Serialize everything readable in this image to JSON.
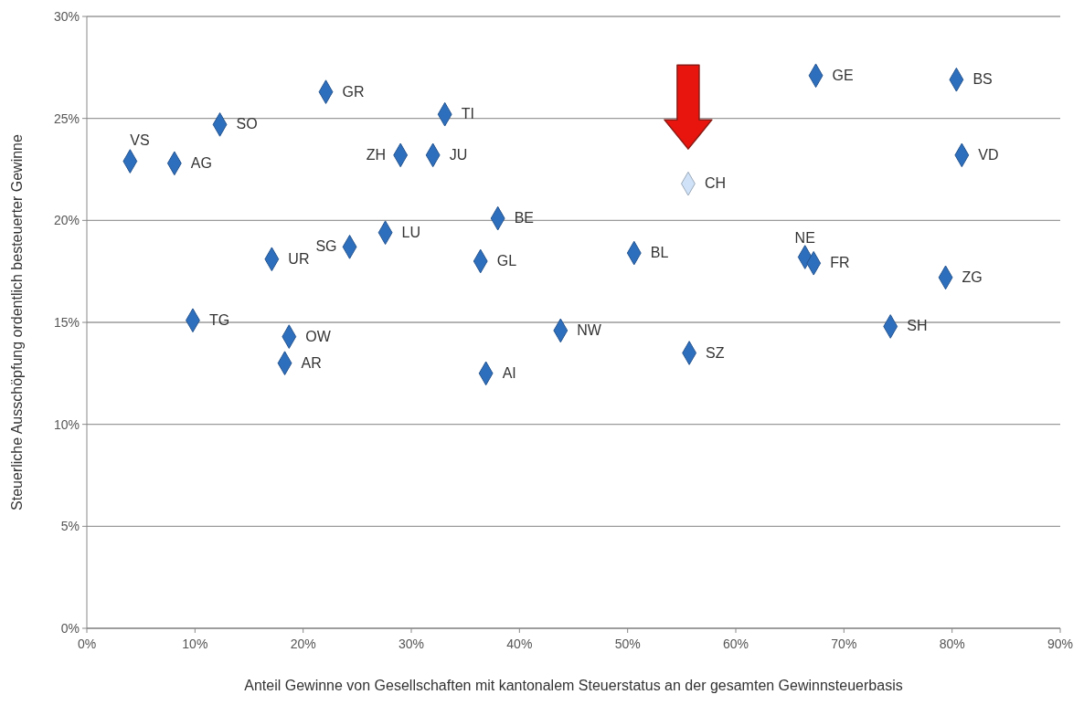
{
  "chart_data": {
    "type": "scatter",
    "xlabel": "Anteil Gewinne von Gesellschaften mit kantonalem Steuerstatus an der gesamten Gewinnsteuerbasis",
    "ylabel": "Steuerliche Ausschöpfung ordentlich besteuerter Gewinne",
    "xlim": [
      0,
      90
    ],
    "xticks": [
      {
        "value": 0,
        "label": "0%"
      },
      {
        "value": 10,
        "label": "10%"
      },
      {
        "value": 20,
        "label": "20%"
      },
      {
        "value": 30,
        "label": "30%"
      },
      {
        "value": 40,
        "label": "40%"
      },
      {
        "value": 50,
        "label": "50%"
      },
      {
        "value": 60,
        "label": "60%"
      },
      {
        "value": 70,
        "label": "70%"
      },
      {
        "value": 80,
        "label": "80%"
      },
      {
        "value": 90,
        "label": "90%"
      }
    ],
    "ylim": [
      0,
      30
    ],
    "yticks": [
      {
        "value": 0,
        "label": "0%"
      },
      {
        "value": 5,
        "label": "5%"
      },
      {
        "value": 10,
        "label": "10%"
      },
      {
        "value": 15,
        "label": "15%"
      },
      {
        "value": 20,
        "label": "20%"
      },
      {
        "value": 25,
        "label": "25%"
      },
      {
        "value": 30,
        "label": "30%"
      }
    ],
    "grid": "y",
    "marker": "diamond",
    "series": [
      {
        "name": "VS",
        "color": "#2e6fbd",
        "x": [
          4.0
        ],
        "values": [
          22.9
        ]
      },
      {
        "name": "AG",
        "color": "#2e6fbd",
        "x": [
          8.1
        ],
        "values": [
          22.8
        ]
      },
      {
        "name": "SO",
        "color": "#2e6fbd",
        "x": [
          12.3
        ],
        "values": [
          24.7
        ]
      },
      {
        "name": "GR",
        "color": "#2e6fbd",
        "x": [
          22.1
        ],
        "values": [
          26.3
        ]
      },
      {
        "name": "TI",
        "color": "#2e6fbd",
        "x": [
          33.1
        ],
        "values": [
          25.2
        ]
      },
      {
        "name": "ZH",
        "color": "#2e6fbd",
        "x": [
          29.0
        ],
        "values": [
          23.2
        ]
      },
      {
        "name": "JU",
        "color": "#2e6fbd",
        "x": [
          32.0
        ],
        "values": [
          23.2
        ]
      },
      {
        "name": "CH",
        "color": "#cfe2f7",
        "x": [
          55.6
        ],
        "values": [
          21.8
        ]
      },
      {
        "name": "GE",
        "color": "#2e6fbd",
        "x": [
          67.4
        ],
        "values": [
          27.1
        ]
      },
      {
        "name": "BS",
        "color": "#2e6fbd",
        "x": [
          80.4
        ],
        "values": [
          26.9
        ]
      },
      {
        "name": "VD",
        "color": "#2e6fbd",
        "x": [
          80.9
        ],
        "values": [
          23.2
        ]
      },
      {
        "name": "BE",
        "color": "#2e6fbd",
        "x": [
          38.0
        ],
        "values": [
          20.1
        ]
      },
      {
        "name": "LU",
        "color": "#2e6fbd",
        "x": [
          27.6
        ],
        "values": [
          19.4
        ]
      },
      {
        "name": "SG",
        "color": "#2e6fbd",
        "x": [
          24.3
        ],
        "values": [
          18.7
        ]
      },
      {
        "name": "UR",
        "color": "#2e6fbd",
        "x": [
          17.1
        ],
        "values": [
          18.1
        ]
      },
      {
        "name": "GL",
        "color": "#2e6fbd",
        "x": [
          36.4
        ],
        "values": [
          18.0
        ]
      },
      {
        "name": "BL",
        "color": "#2e6fbd",
        "x": [
          50.6
        ],
        "values": [
          18.4
        ]
      },
      {
        "name": "NE",
        "color": "#2e6fbd",
        "x": [
          66.4
        ],
        "values": [
          18.2
        ]
      },
      {
        "name": "FR",
        "color": "#2e6fbd",
        "x": [
          67.2
        ],
        "values": [
          17.9
        ]
      },
      {
        "name": "ZG",
        "color": "#2e6fbd",
        "x": [
          79.4
        ],
        "values": [
          17.2
        ]
      },
      {
        "name": "TG",
        "color": "#2e6fbd",
        "x": [
          9.8
        ],
        "values": [
          15.1
        ]
      },
      {
        "name": "OW",
        "color": "#2e6fbd",
        "x": [
          18.7
        ],
        "values": [
          14.3
        ]
      },
      {
        "name": "AR",
        "color": "#2e6fbd",
        "x": [
          18.3
        ],
        "values": [
          13.0
        ]
      },
      {
        "name": "NW",
        "color": "#2e6fbd",
        "x": [
          43.8
        ],
        "values": [
          14.6
        ]
      },
      {
        "name": "SZ",
        "color": "#2e6fbd",
        "x": [
          55.7
        ],
        "values": [
          13.5
        ]
      },
      {
        "name": "AI",
        "color": "#2e6fbd",
        "x": [
          36.9
        ],
        "values": [
          12.5
        ]
      },
      {
        "name": "SH",
        "color": "#2e6fbd",
        "x": [
          74.3
        ],
        "values": [
          14.8
        ]
      }
    ]
  }
}
